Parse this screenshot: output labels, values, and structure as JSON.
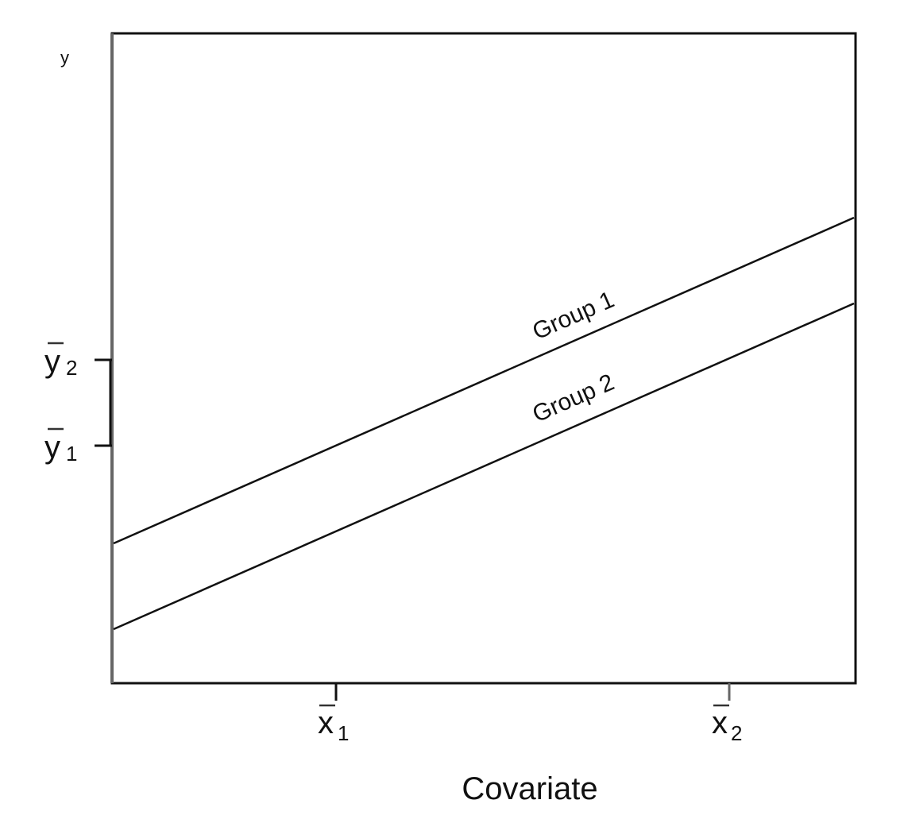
{
  "figure": {
    "y_axis_label": "y",
    "x_axis_label": "Covariate",
    "y_ticks": [
      {
        "base": "y",
        "subscript": "2"
      },
      {
        "base": "y",
        "subscript": "1"
      }
    ],
    "x_ticks": [
      {
        "base": "x",
        "subscript": "1"
      },
      {
        "base": "x",
        "subscript": "2"
      }
    ],
    "lines": [
      {
        "label": "Group 1"
      },
      {
        "label": "Group 2"
      }
    ]
  }
}
